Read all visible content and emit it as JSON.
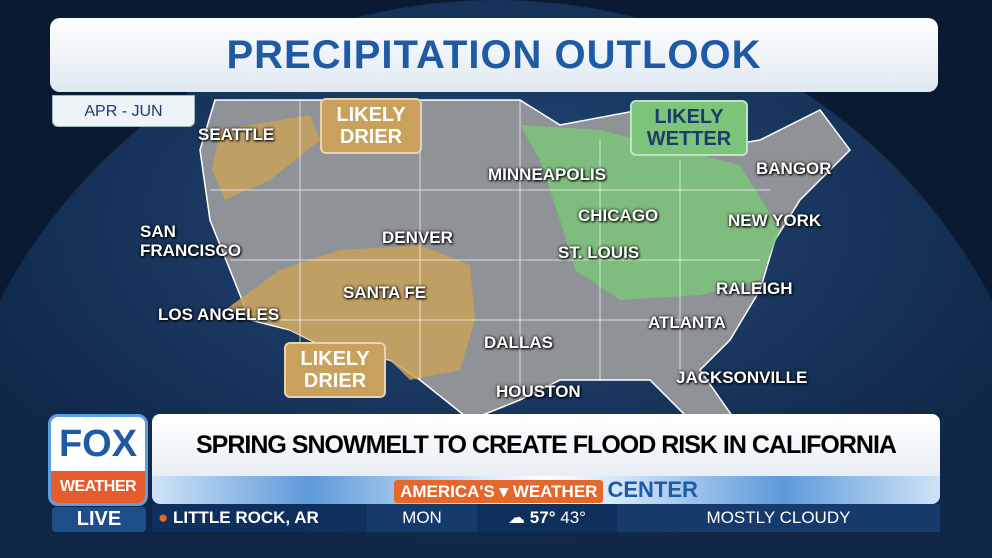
{
  "title": "PRECIPITATION OUTLOOK",
  "period": "APR - JUN",
  "labels": {
    "drier_nw": "LIKELY\nDRIER",
    "drier_sw": "LIKELY\nDRIER",
    "wetter": "LIKELY\nWETTER"
  },
  "cities": [
    "SEATTLE",
    "SAN\nFRANCISCO",
    "LOS ANGELES",
    "DENVER",
    "SANTA FE",
    "DALLAS",
    "HOUSTON",
    "MINNEAPOLIS",
    "CHICAGO",
    "ST. LOUIS",
    "ATLANTA",
    "JACKSONVILLE",
    "RALEIGH",
    "NEW YORK",
    "BANGOR"
  ],
  "colors": {
    "drier": "#c9a15c",
    "wetter": "#7cc47a",
    "land": "#8f9296",
    "ocean": "#12315a"
  },
  "lower_third": {
    "logo_top": "FOX",
    "logo_bottom": "WEATHER",
    "live": "LIVE",
    "headline": "SPRING SNOWMELT TO CREATE FLOOD RISK IN CALIFORNIA",
    "brand_a": "AMERICA'S ▾ WEATHER",
    "brand_b": "CENTER",
    "location": "LITTLE ROCK, AR",
    "day": "MON",
    "weather_icon": "partly-cloudy-icon",
    "high": "57°",
    "low": "43°",
    "condition": "MOSTLY CLOUDY"
  }
}
